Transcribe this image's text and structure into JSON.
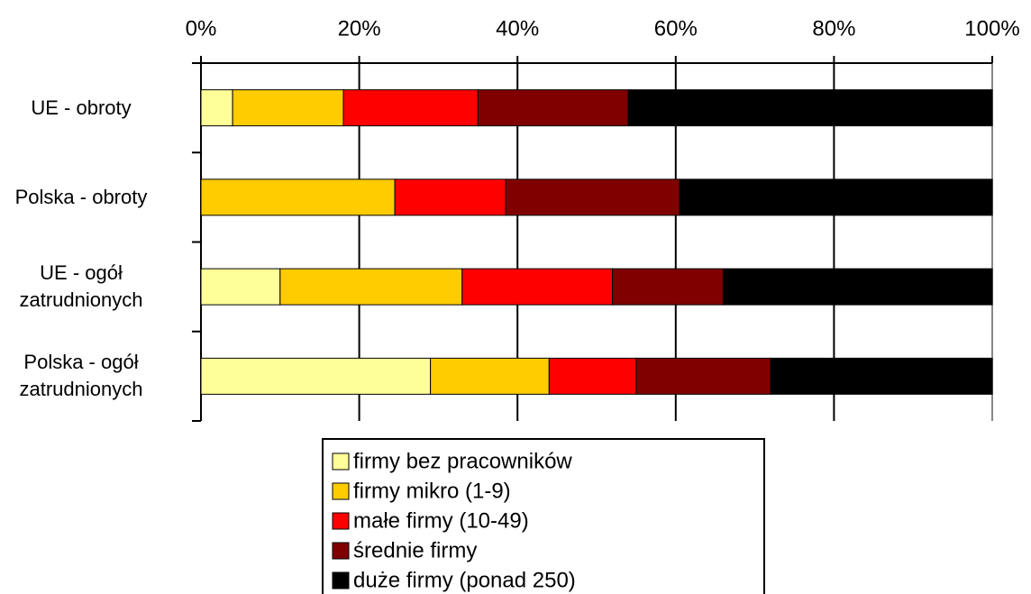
{
  "chart_data": {
    "type": "stacked_barh",
    "categories": [
      "UE - obroty",
      "Polska - obroty",
      "UE - ogół\nzatrudnionych",
      "Polska - ogół\nzatrudnionych"
    ],
    "series": [
      {
        "name": "firmy bez pracowników",
        "color": "#ffff99",
        "values": [
          4,
          0,
          10,
          29
        ]
      },
      {
        "name": "firmy mikro (1-9)",
        "color": "#ffcc00",
        "values": [
          14,
          24.5,
          23,
          15
        ]
      },
      {
        "name": "małe firmy (10-49)",
        "color": "#ff0000",
        "values": [
          17,
          14,
          19,
          11
        ]
      },
      {
        "name": "średnie firmy",
        "color": "#800000",
        "values": [
          19,
          22,
          14,
          17
        ]
      },
      {
        "name": "duże firmy (ponad 250)",
        "color": "#000000",
        "values": [
          46,
          39.5,
          34,
          28
        ]
      }
    ],
    "xlim": [
      0,
      100
    ],
    "xticks": [
      {
        "value": 0,
        "label": "0%"
      },
      {
        "value": 20,
        "label": "20%"
      },
      {
        "value": 40,
        "label": "40%"
      },
      {
        "value": 60,
        "label": "60%"
      },
      {
        "value": 80,
        "label": "80%"
      },
      {
        "value": 100,
        "label": "100%"
      }
    ],
    "grid": true,
    "legend": "bottom"
  }
}
